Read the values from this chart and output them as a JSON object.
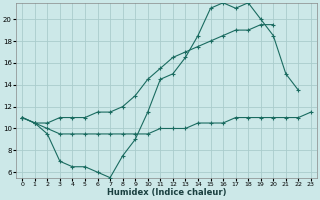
{
  "xlabel": "Humidex (Indice chaleur)",
  "bg_color": "#cce8e8",
  "grid_color": "#aacccc",
  "line_color": "#1a6b60",
  "xlim": [
    -0.5,
    23.5
  ],
  "ylim": [
    5.5,
    21.5
  ],
  "xticks": [
    0,
    1,
    2,
    3,
    4,
    5,
    6,
    7,
    8,
    9,
    10,
    11,
    12,
    13,
    14,
    15,
    16,
    17,
    18,
    19,
    20,
    21,
    22,
    23
  ],
  "yticks": [
    6,
    8,
    10,
    12,
    14,
    16,
    18,
    20
  ],
  "curve_top_x": [
    0,
    1,
    2,
    3,
    4,
    5,
    6,
    7,
    8,
    9,
    10,
    11,
    12,
    13,
    14,
    15,
    16,
    17,
    18,
    19,
    20,
    21,
    22
  ],
  "curve_top_y": [
    11,
    10.5,
    9.5,
    7.0,
    6.5,
    6.5,
    6.0,
    5.5,
    7.5,
    9.0,
    11.5,
    14.5,
    15.0,
    16.5,
    18.5,
    21.0,
    21.5,
    21.0,
    21.5,
    20.0,
    18.5,
    15.0,
    13.5
  ],
  "curve_mid_x": [
    0,
    1,
    2,
    3,
    4,
    5,
    6,
    7,
    8,
    9,
    10,
    11,
    12,
    13,
    14,
    15,
    16,
    17,
    18,
    19,
    20
  ],
  "curve_mid_y": [
    11,
    10.5,
    10.5,
    11,
    11,
    11,
    11.5,
    11.5,
    12.0,
    13.0,
    14.5,
    15.5,
    16.5,
    17.0,
    17.5,
    18.0,
    18.5,
    19.0,
    19.0,
    19.5,
    19.5
  ],
  "curve_bot_x": [
    0,
    1,
    2,
    3,
    4,
    5,
    6,
    7,
    8,
    9,
    10,
    11,
    12,
    13,
    14,
    15,
    16,
    17,
    18,
    19,
    20,
    21,
    22,
    23
  ],
  "curve_bot_y": [
    11,
    10.5,
    10.0,
    9.5,
    9.5,
    9.5,
    9.5,
    9.5,
    9.5,
    9.5,
    9.5,
    10.0,
    10.0,
    10.0,
    10.5,
    10.5,
    10.5,
    11.0,
    11.0,
    11.0,
    11.0,
    11.0,
    11.0,
    11.5
  ]
}
